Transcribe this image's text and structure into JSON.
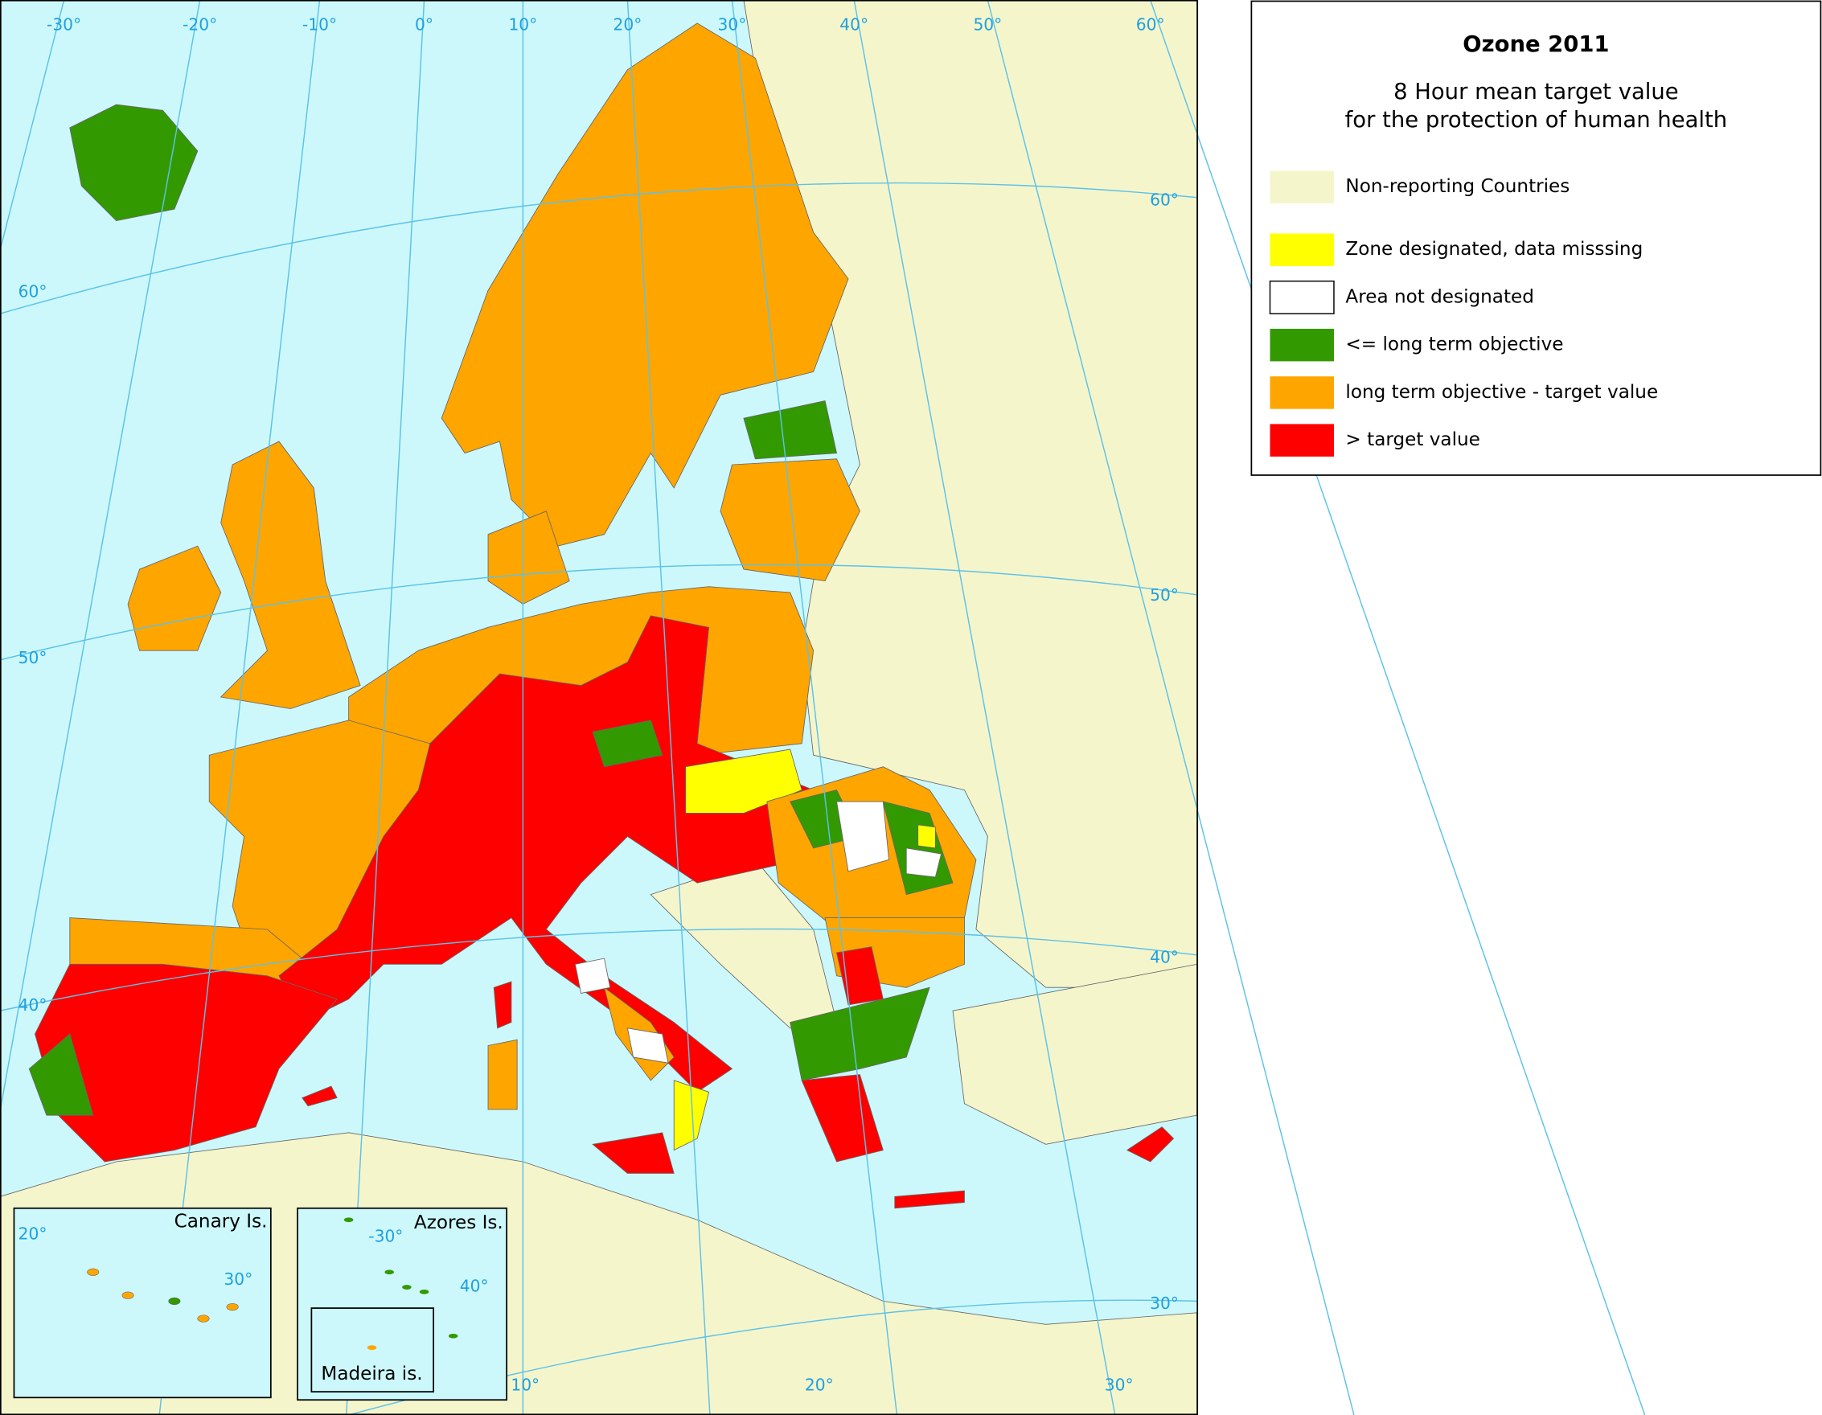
{
  "title": "Ozone 2011",
  "subtitle": [
    "8 Hour mean target value",
    "for the protection of human health"
  ],
  "legend": [
    {
      "label": "Non-reporting Countries",
      "color": "#f5f5cc"
    },
    {
      "label": "Zone designated, data misssing",
      "color": "#ffff00"
    },
    {
      "label": "Area not designated",
      "color": "#ffffff"
    },
    {
      "label": "<= long term objective",
      "color": "#339900"
    },
    {
      "label": "long term objective - target value",
      "color": "#ffa500"
    },
    {
      "label": "> target value",
      "color": "#ff0000"
    }
  ],
  "graticule": {
    "top": [
      "-30°",
      "-20°",
      "-10°",
      "0°",
      "10°",
      "20°",
      "30°",
      "40°",
      "50°",
      "60°"
    ],
    "left": [
      "60°",
      "50°",
      "40°"
    ],
    "right": [
      "60°",
      "50°",
      "40°",
      "30°"
    ],
    "bottom": [
      "10°",
      "20°",
      "30°"
    ]
  },
  "insets": [
    {
      "label": "Canary Is.",
      "graticule": [
        "20°",
        "30°"
      ]
    },
    {
      "label": "Azores Is.",
      "graticule": [
        "-30°",
        "40°"
      ]
    },
    {
      "label": "Madeira is."
    }
  ]
}
